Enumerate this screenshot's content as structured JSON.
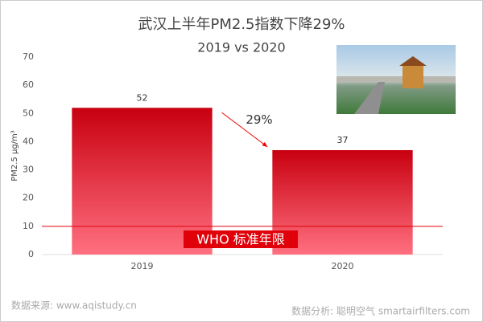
{
  "chart_data": {
    "type": "bar",
    "title": "武汉上半年PM2.5指数下降29%",
    "subtitle": "2019 vs 2020",
    "y_label": "PM2.5  μg/m³",
    "categories": [
      "2019",
      "2020"
    ],
    "values": [
      52,
      37
    ],
    "color": "#c80010",
    "ylim": [
      0,
      70
    ],
    "yticks": [
      0,
      10,
      20,
      30,
      40,
      50,
      60,
      70
    ],
    "grid": false,
    "reference_line": {
      "value": 10,
      "label": "WHO 标准年限",
      "color": "#e0000a"
    },
    "annotation": "29%",
    "source": "数据来源:  www.aqistudy.cn",
    "analysis": "数据分析:  聪明空气 smartairfilters.com"
  }
}
